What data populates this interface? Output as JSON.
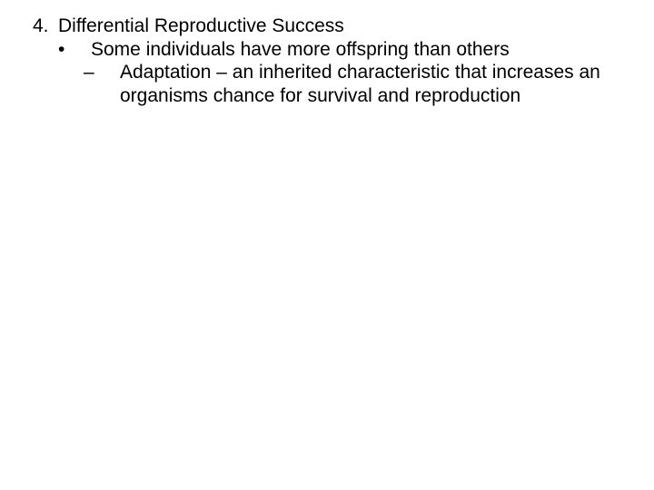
{
  "slide": {
    "background_color": "#ffffff",
    "text_color": "#000000",
    "font_family": "Arial",
    "font_size_pt": 16,
    "items": {
      "l1_marker": "4.",
      "l1_text": "Differential Reproductive Success",
      "l2_marker": "•",
      "l2_text": "Some individuals have more offspring than others",
      "l3_marker": "–",
      "l3_text": "Adaptation – an inherited characteristic that increases an organisms chance for survival and reproduction"
    }
  }
}
